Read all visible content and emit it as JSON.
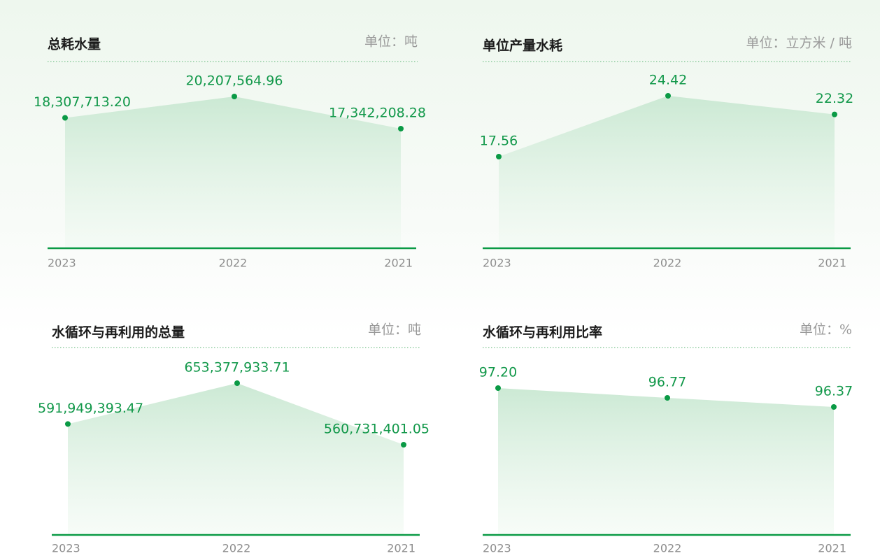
{
  "chart_data": [
    {
      "type": "area",
      "title": "总耗水量",
      "unit": "单位：吨",
      "categories": [
        "2023",
        "2022",
        "2021"
      ],
      "values": [
        18307713.2,
        20207564.96,
        17342208.28
      ],
      "value_labels": [
        "18,307,713.20",
        "20,207,564.96",
        "17,342,208.28"
      ],
      "color": "#0a9a45"
    },
    {
      "type": "area",
      "title": "单位产量水耗",
      "unit": "单位：立方米 / 吨",
      "categories": [
        "2023",
        "2022",
        "2021"
      ],
      "values": [
        17.56,
        24.42,
        22.32
      ],
      "value_labels": [
        "17.56",
        "24.42",
        "22.32"
      ],
      "color": "#0a9a45"
    },
    {
      "type": "area",
      "title": "水循环与再利用的总量",
      "unit": "单位：吨",
      "categories": [
        "2023",
        "2022",
        "2021"
      ],
      "values": [
        591949393.47,
        653377933.71,
        560731401.05
      ],
      "value_labels": [
        "591,949,393.47",
        "653,377,933.71",
        "560,731,401.05"
      ],
      "color": "#0a9a45"
    },
    {
      "type": "area",
      "title": "水循环与再利用比率",
      "unit": "单位：%",
      "categories": [
        "2023",
        "2022",
        "2021"
      ],
      "values": [
        97.2,
        96.77,
        96.37
      ],
      "value_labels": [
        "97.20",
        "96.77",
        "96.37"
      ],
      "color": "#0a9a45"
    }
  ]
}
